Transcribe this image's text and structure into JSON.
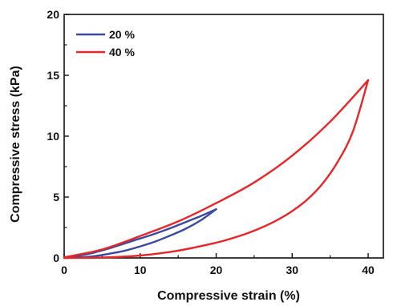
{
  "chart_data": {
    "type": "line",
    "xlabel": "Compressive strain (%)",
    "ylabel": "Compressive stress (kPa)",
    "xlim": [
      0,
      42
    ],
    "ylim": [
      0,
      20
    ],
    "xticks": [
      0,
      10,
      20,
      30,
      40
    ],
    "yticks": [
      0,
      5,
      10,
      15,
      20
    ],
    "grid": false,
    "legend": "top-left",
    "series": [
      {
        "name": "20 %",
        "color": "#3b4a9c",
        "loading": {
          "x": [
            0,
            2,
            4,
            6,
            8,
            10,
            12,
            14,
            16,
            18,
            20
          ],
          "y": [
            0.05,
            0.2,
            0.45,
            0.8,
            1.2,
            1.6,
            2.0,
            2.45,
            2.95,
            3.45,
            4.0
          ]
        },
        "unloading": {
          "x": [
            20,
            18,
            16,
            14,
            12,
            10,
            8,
            6,
            4,
            2,
            0
          ],
          "y": [
            4.0,
            3.1,
            2.4,
            1.85,
            1.35,
            0.95,
            0.6,
            0.35,
            0.15,
            0.05,
            0.0
          ]
        }
      },
      {
        "name": "40 %",
        "color": "#e8262a",
        "loading": {
          "x": [
            0,
            5,
            10,
            15,
            20,
            25,
            30,
            35,
            40
          ],
          "y": [
            0.05,
            0.7,
            1.8,
            3.0,
            4.5,
            6.2,
            8.4,
            11.2,
            14.6
          ]
        },
        "unloading": {
          "x": [
            40,
            38,
            36,
            34,
            32,
            30,
            28,
            26,
            24,
            22,
            20,
            15,
            10,
            5,
            0
          ],
          "y": [
            14.6,
            10.4,
            7.9,
            6.1,
            4.8,
            3.85,
            3.1,
            2.5,
            2.0,
            1.6,
            1.25,
            0.6,
            0.2,
            0.03,
            0.0
          ]
        }
      }
    ]
  }
}
